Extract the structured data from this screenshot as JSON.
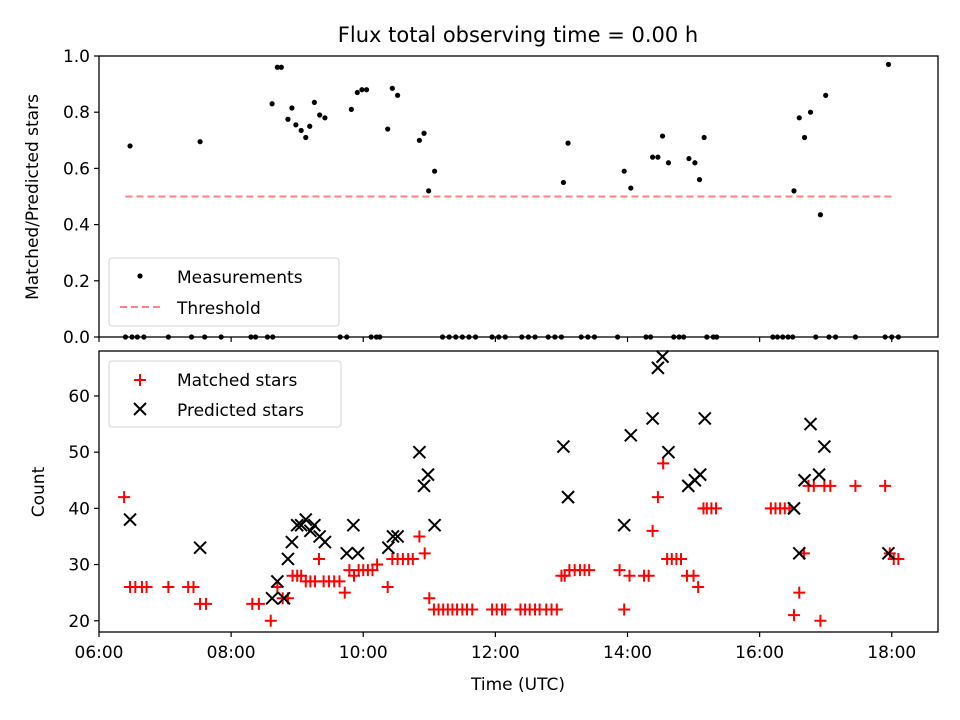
{
  "chart_data": [
    {
      "type": "scatter",
      "title": "Flux total observing time = 0.00 h",
      "xlabel": "",
      "ylabel": "Matched/Predicted stars",
      "xlim": [
        6.0,
        18.7
      ],
      "ylim": [
        0.0,
        1.0
      ],
      "xticks": [
        6,
        8,
        10,
        12,
        14,
        16,
        18
      ],
      "yticks": [
        0.0,
        0.2,
        0.4,
        0.6,
        0.8,
        1.0
      ],
      "yticklabels": [
        "0.0",
        "0.2",
        "0.4",
        "0.6",
        "0.8",
        "1.0"
      ],
      "legend_position": "lower-left",
      "series": [
        {
          "name": "Measurements",
          "marker": "dot",
          "color": "#000000",
          "x": [
            6.47,
            7.53,
            8.62,
            8.7,
            8.76,
            8.86,
            8.92,
            8.98,
            9.06,
            9.13,
            9.19,
            9.26,
            9.34,
            9.42,
            9.82,
            9.91,
            9.98,
            10.05,
            10.37,
            10.44,
            10.52,
            10.85,
            10.92,
            10.99,
            11.08,
            13.03,
            13.1,
            13.95,
            14.05,
            14.38,
            14.46,
            14.53,
            14.62,
            14.93,
            15.02,
            15.09,
            15.16,
            16.52,
            16.6,
            16.68,
            16.77,
            16.92,
            17.0,
            17.95
          ],
          "y": [
            0.68,
            0.695,
            0.83,
            0.96,
            0.96,
            0.775,
            0.815,
            0.755,
            0.735,
            0.71,
            0.75,
            0.835,
            0.79,
            0.78,
            0.81,
            0.87,
            0.88,
            0.88,
            0.74,
            0.885,
            0.86,
            0.7,
            0.725,
            0.52,
            0.59,
            0.55,
            0.69,
            0.59,
            0.53,
            0.64,
            0.64,
            0.715,
            0.62,
            0.635,
            0.62,
            0.56,
            0.71,
            0.52,
            0.78,
            0.71,
            0.8,
            0.435,
            0.86,
            0.97
          ]
        },
        {
          "name": "Measurements",
          "marker": "dot",
          "color": "#000000",
          "x": [
            6.4,
            6.5,
            6.58,
            6.68,
            7.05,
            7.4,
            7.6,
            7.85,
            8.3,
            8.37,
            8.55,
            8.63,
            9.65,
            9.75,
            10.12,
            10.2,
            10.25,
            11.2,
            11.3,
            11.4,
            11.5,
            11.6,
            11.7,
            11.95,
            12.05,
            12.15,
            12.4,
            12.5,
            12.6,
            12.8,
            12.9,
            13.0,
            13.3,
            13.4,
            13.5,
            13.85,
            14.28,
            14.35,
            14.7,
            14.78,
            14.85,
            15.2,
            15.3,
            15.35,
            16.2,
            16.27,
            16.35,
            16.43,
            16.5,
            16.85,
            17.05,
            17.15,
            17.45,
            17.9,
            18.0,
            18.1
          ],
          "y": [
            0,
            0,
            0,
            0,
            0,
            0,
            0,
            0,
            0,
            0,
            0,
            0,
            0,
            0,
            0,
            0,
            0,
            0,
            0,
            0,
            0,
            0,
            0,
            0,
            0,
            0,
            0,
            0,
            0,
            0,
            0,
            0,
            0,
            0,
            0,
            0,
            0,
            0,
            0,
            0,
            0,
            0,
            0,
            0,
            0,
            0,
            0,
            0,
            0,
            0,
            0,
            0,
            0,
            0,
            0,
            0
          ]
        },
        {
          "name": "Threshold",
          "marker": "dashed-line",
          "color": "#ff8080",
          "x": [
            6.4,
            18.05
          ],
          "y": [
            0.5,
            0.5
          ]
        }
      ]
    },
    {
      "type": "scatter",
      "xlabel": "Time (UTC)",
      "ylabel": "Count",
      "xlim": [
        6.0,
        18.7
      ],
      "ylim": [
        18,
        68
      ],
      "xticks": [
        6,
        8,
        10,
        12,
        14,
        16,
        18
      ],
      "xticklabels": [
        "06:00",
        "08:00",
        "10:00",
        "12:00",
        "14:00",
        "16:00",
        "18:00"
      ],
      "yticks": [
        20,
        30,
        40,
        50,
        60
      ],
      "yticklabels": [
        "20",
        "30",
        "40",
        "50",
        "60"
      ],
      "legend_position": "upper-left",
      "series": [
        {
          "name": "Matched stars",
          "marker": "plus",
          "color": "#ff0000",
          "x": [
            6.38,
            6.47,
            6.55,
            6.65,
            6.72,
            7.05,
            7.35,
            7.43,
            7.53,
            7.62,
            8.32,
            8.42,
            8.6,
            8.7,
            8.78,
            8.86,
            8.93,
            9.0,
            9.06,
            9.13,
            9.2,
            9.27,
            9.33,
            9.4,
            9.48,
            9.56,
            9.64,
            9.72,
            9.79,
            9.86,
            9.93,
            10.0,
            10.07,
            10.14,
            10.21,
            10.37,
            10.44,
            10.52,
            10.6,
            10.68,
            10.75,
            10.85,
            10.93,
            11.0,
            11.07,
            11.14,
            11.21,
            11.28,
            11.35,
            11.42,
            11.5,
            11.57,
            11.65,
            11.95,
            12.02,
            12.1,
            12.15,
            12.38,
            12.45,
            12.52,
            12.6,
            12.67,
            12.77,
            12.85,
            12.93,
            13.0,
            13.05,
            13.12,
            13.2,
            13.28,
            13.35,
            13.42,
            13.88,
            13.95,
            14.03,
            14.25,
            14.32,
            14.38,
            14.46,
            14.54,
            14.6,
            14.67,
            14.74,
            14.81,
            14.9,
            15.0,
            15.07,
            15.15,
            15.2,
            15.27,
            15.34,
            16.17,
            16.24,
            16.31,
            16.38,
            16.45,
            16.52,
            16.6,
            16.67,
            16.74,
            16.82,
            16.92,
            16.98,
            17.07,
            17.45,
            17.9,
            17.97,
            18.03,
            18.1
          ],
          "y": [
            42,
            26,
            26,
            26,
            26,
            26,
            26,
            26,
            23,
            23,
            23,
            23,
            20,
            26,
            24,
            24,
            28,
            28,
            28,
            27,
            27,
            27,
            31,
            27,
            27,
            27,
            27,
            25,
            29,
            28,
            29,
            29,
            29,
            29,
            30,
            26,
            31,
            31,
            31,
            31,
            31,
            35,
            32,
            24,
            22,
            22,
            22,
            22,
            22,
            22,
            22,
            22,
            22,
            22,
            22,
            22,
            22,
            22,
            22,
            22,
            22,
            22,
            22,
            22,
            22,
            28,
            28,
            29,
            29,
            29,
            29,
            29,
            29,
            22,
            28,
            28,
            28,
            36,
            42,
            48,
            31,
            31,
            31,
            31,
            28,
            28,
            26,
            40,
            40,
            40,
            40,
            40,
            40,
            40,
            40,
            40,
            21,
            25,
            32,
            44,
            44,
            20,
            44,
            44,
            44,
            44,
            32,
            31,
            31
          ]
        },
        {
          "name": "Predicted stars",
          "marker": "x",
          "color": "#000000",
          "x": [
            6.47,
            7.53,
            8.62,
            8.7,
            8.8,
            8.86,
            8.92,
            9.0,
            9.06,
            9.13,
            9.2,
            9.26,
            9.34,
            9.42,
            9.75,
            9.85,
            9.92,
            10.38,
            10.45,
            10.52,
            10.85,
            10.92,
            10.98,
            11.08,
            13.03,
            13.1,
            13.95,
            14.05,
            14.38,
            14.46,
            14.53,
            14.62,
            14.92,
            15.02,
            15.1,
            15.17,
            16.52,
            16.6,
            16.68,
            16.77,
            16.9,
            16.98,
            17.95
          ],
          "y": [
            38,
            33,
            24,
            27,
            24,
            31,
            34,
            37,
            37,
            38,
            36,
            37,
            35,
            34,
            32,
            37,
            32,
            33,
            35,
            35,
            50,
            44,
            46,
            37,
            51,
            42,
            37,
            53,
            56,
            65,
            67,
            50,
            44,
            45,
            46,
            56,
            40,
            32,
            45,
            55,
            46,
            51,
            32
          ]
        }
      ]
    }
  ]
}
